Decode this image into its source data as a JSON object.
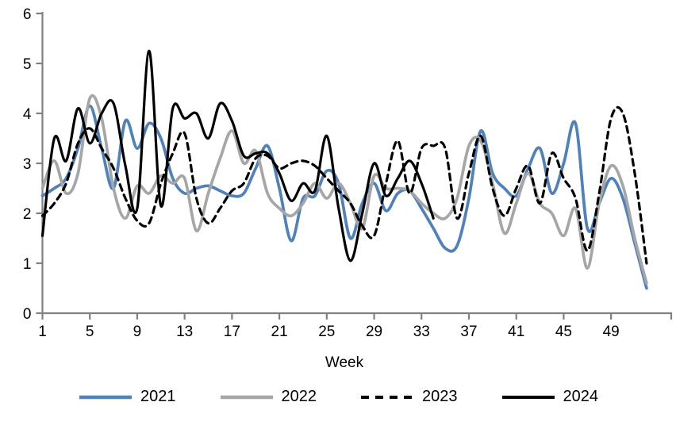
{
  "chart_data": {
    "type": "line",
    "title": "",
    "xlabel": "Week",
    "ylabel": "",
    "ylim": [
      0,
      6
    ],
    "y_ticks": [
      0,
      1,
      2,
      3,
      4,
      5,
      6
    ],
    "x_ticks": [
      1,
      5,
      9,
      13,
      17,
      21,
      25,
      29,
      33,
      37,
      41,
      45,
      49
    ],
    "x_range": [
      1,
      52
    ],
    "grid": false,
    "legend_position": "bottom",
    "axis_color": "#808080",
    "series": [
      {
        "name": "2021",
        "color": "#4F81BD",
        "style": "solid",
        "start_week": 1,
        "values": [
          2.35,
          2.5,
          2.7,
          3.3,
          4.15,
          3.3,
          2.5,
          3.85,
          3.3,
          3.8,
          3.5,
          2.7,
          2.4,
          2.5,
          2.55,
          2.45,
          2.35,
          2.4,
          2.9,
          3.35,
          2.5,
          1.45,
          2.3,
          2.35,
          2.85,
          2.6,
          1.5,
          2.2,
          2.6,
          2.05,
          2.4,
          2.45,
          2.1,
          1.7,
          1.3,
          1.35,
          2.3,
          3.65,
          2.8,
          2.5,
          2.35,
          2.9,
          3.3,
          2.4,
          3.0,
          3.8,
          1.7,
          2.2,
          2.7,
          2.3,
          1.4,
          0.5
        ]
      },
      {
        "name": "2022",
        "color": "#A6A6A6",
        "style": "solid",
        "start_week": 1,
        "values": [
          2.5,
          3.05,
          2.4,
          2.8,
          4.3,
          3.9,
          2.5,
          1.9,
          2.55,
          2.4,
          2.75,
          2.6,
          2.7,
          1.65,
          2.4,
          3.1,
          3.65,
          3.0,
          3.25,
          2.4,
          2.1,
          1.95,
          2.2,
          2.6,
          2.3,
          2.6,
          2.2,
          1.7,
          2.75,
          2.5,
          2.5,
          2.45,
          2.2,
          2.0,
          1.9,
          2.3,
          3.35,
          3.45,
          2.6,
          1.6,
          2.2,
          2.8,
          2.2,
          2.0,
          1.55,
          2.1,
          0.9,
          2.2,
          2.95,
          2.55,
          1.5,
          0.6
        ]
      },
      {
        "name": "2023",
        "color": "#000000",
        "style": "dashed",
        "start_week": 1,
        "values": [
          1.95,
          2.2,
          2.6,
          3.4,
          3.7,
          3.3,
          2.9,
          2.3,
          1.85,
          1.8,
          2.6,
          3.2,
          3.6,
          2.3,
          1.8,
          2.1,
          2.45,
          2.6,
          3.1,
          3.15,
          2.9,
          3.0,
          3.05,
          2.95,
          2.7,
          2.45,
          2.2,
          1.75,
          1.55,
          2.6,
          3.45,
          2.4,
          3.3,
          3.35,
          3.3,
          1.9,
          2.8,
          3.55,
          2.5,
          1.95,
          2.5,
          2.95,
          2.2,
          3.2,
          2.7,
          2.3,
          1.25,
          2.4,
          3.9,
          4.0,
          2.8,
          1.0
        ]
      },
      {
        "name": "2024",
        "color": "#000000",
        "style": "solid",
        "start_week": 1,
        "values": [
          1.55,
          3.5,
          3.05,
          4.1,
          3.4,
          4.0,
          4.2,
          2.95,
          2.1,
          5.25,
          2.15,
          4.1,
          3.9,
          4.0,
          3.5,
          4.2,
          3.85,
          3.15,
          3.2,
          3.2,
          2.8,
          2.25,
          2.6,
          2.45,
          3.55,
          2.1,
          1.05,
          2.0,
          3.0,
          2.35,
          2.7,
          3.05,
          2.6,
          1.9
        ]
      }
    ]
  }
}
